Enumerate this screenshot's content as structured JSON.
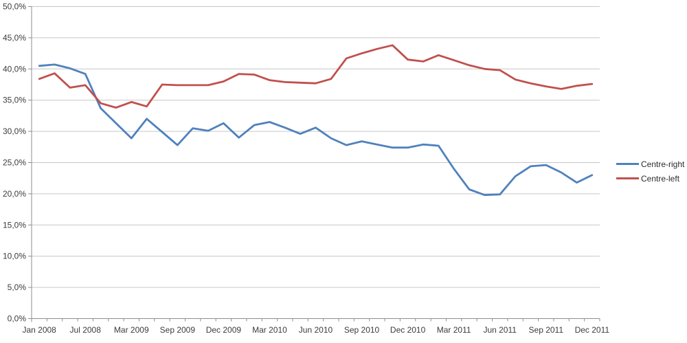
{
  "chart_data": {
    "type": "line",
    "title": "",
    "n_points": 37,
    "x_tick_labels": [
      "Jan 2008",
      "Jul 2008",
      "Mar 2009",
      "Sep 2009",
      "Dec 2009",
      "Mar 2010",
      "Jun 2010",
      "Sep 2010",
      "Dec 2010",
      "Mar 2011",
      "Jun 2011",
      "Sep 2011",
      "Dec 2011"
    ],
    "x_label_every": 3,
    "y_axis": {
      "min": 0,
      "max": 50,
      "step": 5,
      "tick_labels": [
        "0,0%",
        "5,0%",
        "10,0%",
        "15,0%",
        "20,0%",
        "25,0%",
        "30,0%",
        "35,0%",
        "40,0%",
        "45,0%",
        "50,0%"
      ]
    },
    "grid": "horizontal",
    "legend_position": "right",
    "series": [
      {
        "name": "Centre-right",
        "color": "#4F81BD",
        "values": [
          40.5,
          40.7,
          40.1,
          39.2,
          33.7,
          31.3,
          28.9,
          32.0,
          29.9,
          27.8,
          30.5,
          30.1,
          31.3,
          29.0,
          31.0,
          31.5,
          30.6,
          29.6,
          30.6,
          28.9,
          27.8,
          28.4,
          27.9,
          27.4,
          27.4,
          27.9,
          27.7,
          24.0,
          20.7,
          19.8,
          19.9,
          22.8,
          24.4,
          24.6,
          23.4,
          21.8,
          23.0
        ]
      },
      {
        "name": "Centre-left",
        "color": "#C0504D",
        "values": [
          38.4,
          39.3,
          37.0,
          37.4,
          34.5,
          33.8,
          34.7,
          34.0,
          37.5,
          37.4,
          37.4,
          37.4,
          38.0,
          39.2,
          39.1,
          38.2,
          37.9,
          37.8,
          37.7,
          38.4,
          41.7,
          42.5,
          43.2,
          43.8,
          41.5,
          41.2,
          42.2,
          41.4,
          40.6,
          40.0,
          39.8,
          38.3,
          37.7,
          37.2,
          36.8,
          37.3,
          37.6
        ]
      }
    ],
    "colors": {
      "gridline": "#c6c6c6",
      "axis": "#8e8e8e",
      "tick_text": "#3b3b3b"
    }
  }
}
